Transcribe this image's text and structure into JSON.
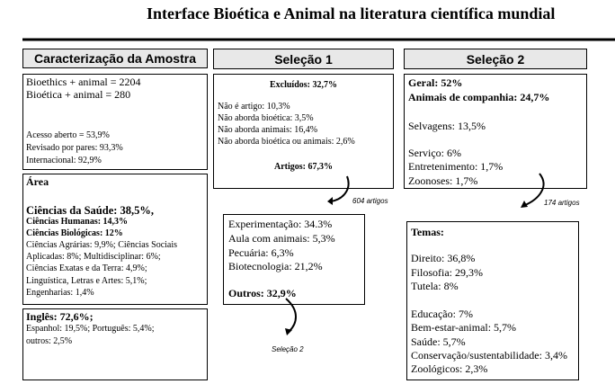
{
  "title": "Interface Bioética e Animal na literatura científica mundial",
  "headers": [
    "Caracterização da Amostra",
    "Seleção 1",
    "Seleção 2"
  ],
  "sample": {
    "search": [
      "Bioethics + animal = 2204",
      "Bioética + animal = 280"
    ],
    "quality": [
      "Acesso aberto = 53,9%",
      "Revisado por pares: 93,3%",
      "Internacional: 92,9%"
    ]
  },
  "area": {
    "title": "Área",
    "main": [
      "Ciências da Saúde: 38,5%,",
      "Ciências Humanas: 14,3%",
      "Ciências Biológicas: 12%"
    ],
    "others": [
      "Ciências Agrárias: 9,9%; Ciências Sociais",
      "Aplicadas: 8%; Multidisciplinar: 6%;",
      "Ciências Exatas e da Terra: 4,9%;",
      "Linguística, Letras e Artes: 5,1%;",
      "Engenharias: 1,4%"
    ]
  },
  "language": {
    "main": "Inglês: 72,6%;",
    "others": [
      "Espanhol: 19,5%;  Português: 5,4%;",
      "outros: 2,5%"
    ]
  },
  "selection1": {
    "excluded": "Excluídos: 32,7%",
    "reasons": [
      "Não é artigo: 10,3%",
      "Não aborda bioética: 3,5%",
      "Não aborda animais: 16,4%",
      "Não aborda bioética ou animais: 2,6%"
    ],
    "articles": "Artigos: 67,3%",
    "arrow_label": "604 artigos",
    "topics": [
      "Experimentação: 34.3%",
      "Aula com animais: 5,3%",
      "Pecuária: 6,3%",
      "Biotecnologia: 21,2%"
    ],
    "others": "Outros: 32,9%",
    "next_label": "Seleção 2"
  },
  "selection2": {
    "main": [
      "Geral: 52%",
      "Animais de companhia: 24,7%"
    ],
    "wild": "Selvagens: 13,5%",
    "others": [
      "Serviço: 6%",
      "Entretenimento: 1,7%",
      "Zoonoses: 1,7%"
    ],
    "arrow_label": "174 artigos",
    "themes_title": "Temas:",
    "themes_a": [
      "Direito: 36,8%",
      "Filosofia: 29,3%",
      "Tutela: 8%"
    ],
    "themes_b": [
      "Educação: 7%",
      "Bem-estar-animal: 5,7%",
      "Saúde: 5,7%",
      "Conservação/sustentabilidade: 3,4%",
      "Zoológicos: 2,3%"
    ]
  }
}
